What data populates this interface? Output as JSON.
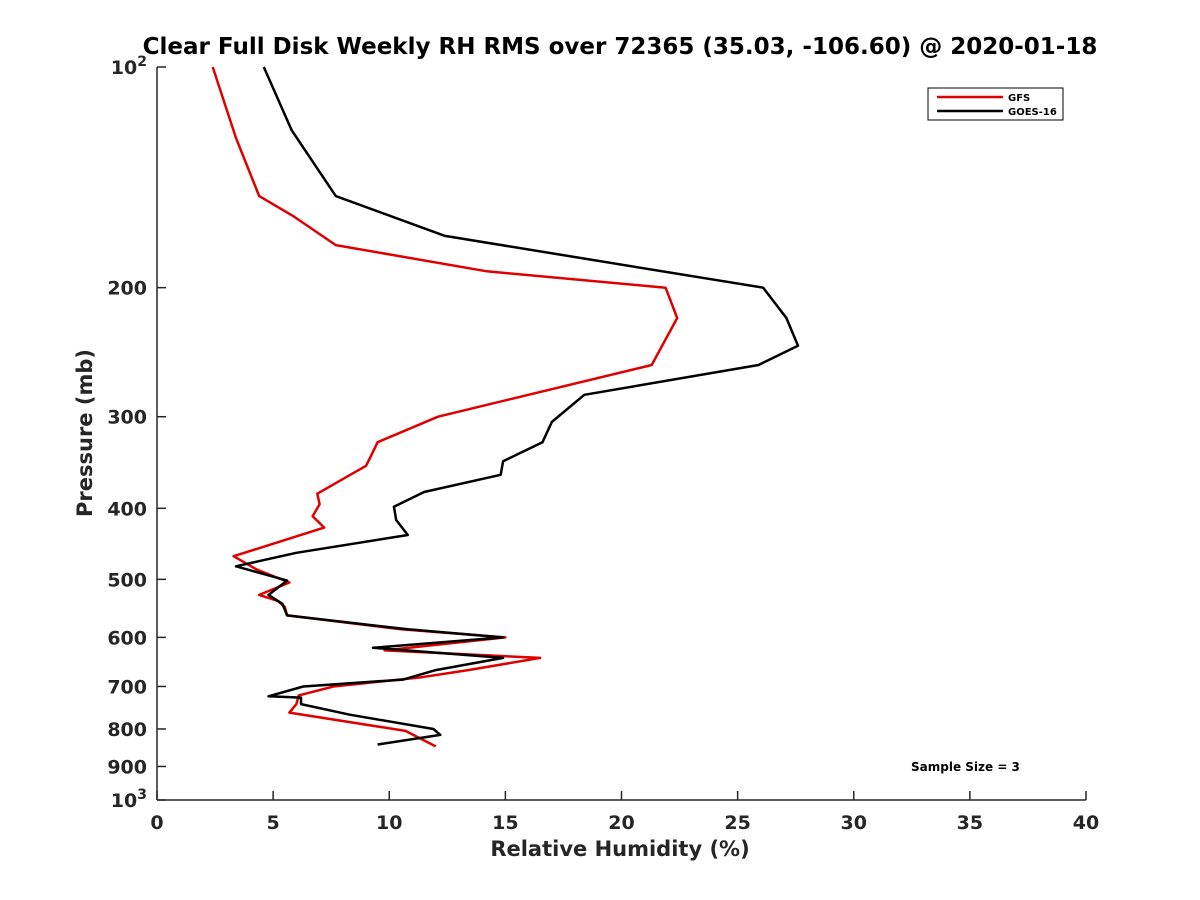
{
  "chart_data": {
    "type": "line",
    "title": "Clear Full Disk Weekly RH RMS over 72365 (35.03, -106.60) @ 2020-01-18",
    "xlabel": "Relative Humidity (%)",
    "ylabel": "Pressure (mb)",
    "xlim": [
      0,
      40
    ],
    "ylim": [
      100,
      1000
    ],
    "y_scale": "log",
    "y_reversed": true,
    "x_ticks": [
      "0",
      "5",
      "10",
      "15",
      "20",
      "25",
      "30",
      "35",
      "40"
    ],
    "y_ticks": [
      {
        "value": 100,
        "base": "10",
        "exp": "2"
      },
      {
        "value": 200,
        "label": "200"
      },
      {
        "value": 300,
        "label": "300"
      },
      {
        "value": 400,
        "label": "400"
      },
      {
        "value": 500,
        "label": "500"
      },
      {
        "value": 600,
        "label": "600"
      },
      {
        "value": 700,
        "label": "700"
      },
      {
        "value": 800,
        "label": "800"
      },
      {
        "value": 900,
        "label": "900"
      },
      {
        "value": 1000,
        "base": "10",
        "exp": "3"
      }
    ],
    "grid": false,
    "legend_position": "top-right",
    "annotation": "Sample Size = 3",
    "series": [
      {
        "name": "GFS",
        "color": "#e00000",
        "x": [
          2.4,
          3.4,
          4.4,
          5.9,
          7.7,
          14.2,
          21.9,
          22.4,
          21.3,
          12.1,
          9.5,
          9.2,
          9.0,
          6.9,
          7.0,
          6.7,
          7.2,
          3.3,
          4.3,
          5.7,
          4.4,
          5.2,
          5.5,
          5.6,
          10.5,
          15.0,
          9.8,
          16.5,
          13.4,
          11.4,
          7.6,
          6.1,
          6.0,
          5.7,
          10.7,
          12.0
        ],
        "y": [
          100,
          125,
          150,
          160,
          175,
          190,
          200,
          220,
          255,
          300,
          325,
          340,
          350,
          382,
          395,
          410,
          425,
          465,
          485,
          505,
          525,
          535,
          545,
          560,
          585,
          600,
          625,
          640,
          665,
          680,
          700,
          720,
          740,
          760,
          805,
          845
        ]
      },
      {
        "name": "GOES-16",
        "color": "#000000",
        "x": [
          4.6,
          5.8,
          7.7,
          12.4,
          26.1,
          27.1,
          27.6,
          25.9,
          18.4,
          17.0,
          16.6,
          14.9,
          14.8,
          11.5,
          10.2,
          10.3,
          10.8,
          6.0,
          3.4,
          5.6,
          4.8,
          5.4,
          5.6,
          10.8,
          14.9,
          9.3,
          14.9,
          12.0,
          10.6,
          6.3,
          4.8,
          6.2,
          6.2,
          8.3,
          11.9,
          12.2,
          9.5
        ],
        "y": [
          100,
          122,
          150,
          170,
          200,
          220,
          240,
          255,
          280,
          305,
          325,
          345,
          360,
          380,
          398,
          415,
          435,
          460,
          480,
          502,
          525,
          540,
          560,
          585,
          600,
          620,
          640,
          665,
          685,
          700,
          722,
          725,
          740,
          765,
          800,
          815,
          840
        ]
      }
    ]
  }
}
